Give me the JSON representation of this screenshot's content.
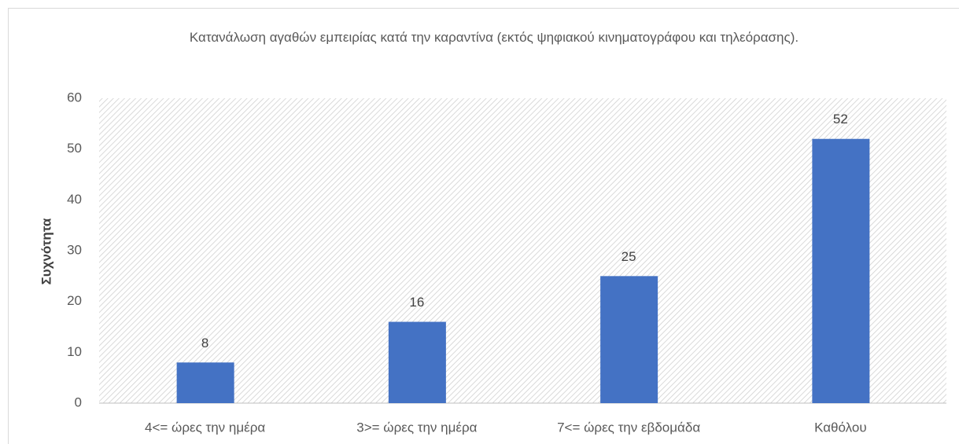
{
  "chart_data": {
    "type": "bar",
    "title": "Κατανάλωση αγαθών εμπειρίας κατά την καραντίνα (εκτός ψηφιακού κινηματογράφου και τηλεόρασης).",
    "ylabel": "Συχνότητα",
    "categories": [
      "4<= ώρες την ημέρα",
      "3>= ώρες την ημέρα",
      "7<= ώρες την εβδομάδα",
      "Καθόλου"
    ],
    "values": [
      8,
      16,
      25,
      52
    ],
    "color": "#4472c4",
    "ylim": [
      0,
      60
    ],
    "yticks": [
      0,
      10,
      20,
      30,
      40,
      50,
      60
    ],
    "grid": false
  }
}
